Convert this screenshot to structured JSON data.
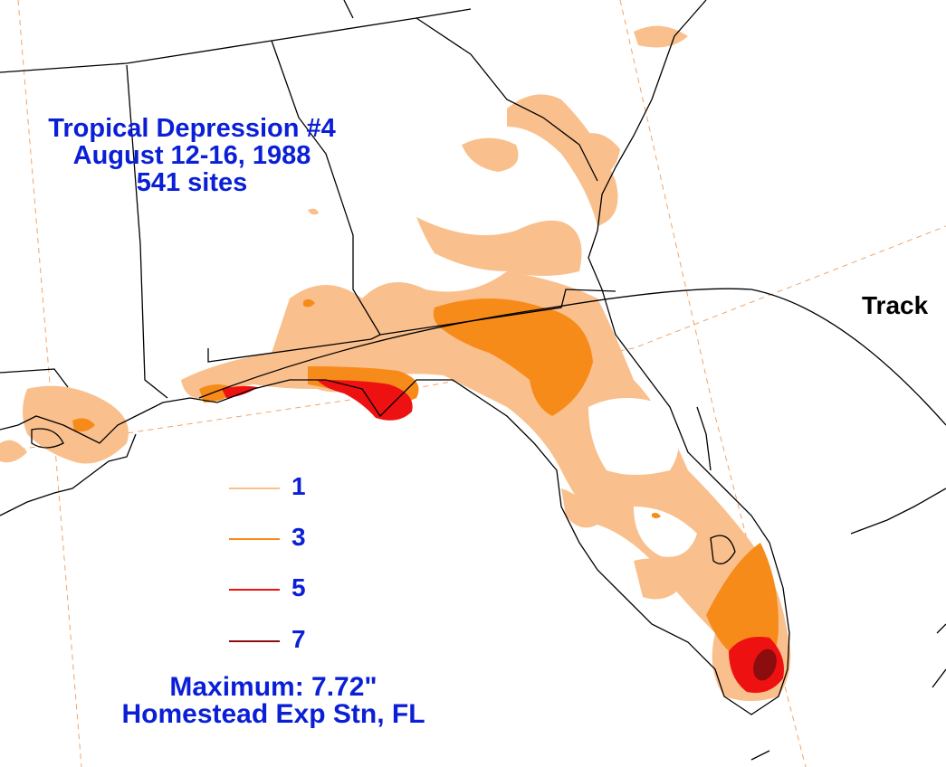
{
  "title": {
    "line1": "Tropical Depression #4",
    "line2": "August 12-16, 1988",
    "line3": "541 sites"
  },
  "track_label": "Track",
  "legend": [
    {
      "label": "1",
      "color": "#f9c08d"
    },
    {
      "label": "3",
      "color": "#f78b1a"
    },
    {
      "label": "5",
      "color": "#ee1111"
    },
    {
      "label": "7",
      "color": "#8b0d0d"
    }
  ],
  "maximum": {
    "line1": "Maximum:  7.72\"",
    "line2": "Homestead Exp Stn, FL"
  },
  "colors": {
    "text": "#0a1fd6",
    "label": "#000000",
    "boundary": "#000000",
    "graticule": "#f2a466"
  }
}
